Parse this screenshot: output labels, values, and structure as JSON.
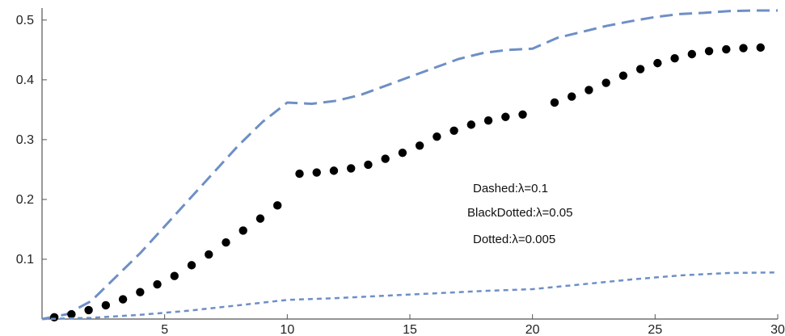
{
  "chart_data": {
    "type": "line",
    "title": "",
    "xlabel": "",
    "ylabel": "",
    "xlim": [
      0,
      30
    ],
    "ylim": [
      0,
      0.52
    ],
    "xticks": [
      5,
      10,
      15,
      20,
      25,
      30
    ],
    "yticks": [
      0.1,
      0.2,
      0.3,
      0.4,
      0.5
    ],
    "xtick_labels": [
      "5",
      "10",
      "15",
      "20",
      "25",
      "30"
    ],
    "ytick_labels": [
      "0.1",
      "0.2",
      "0.3",
      "0.4",
      "0.5"
    ],
    "grid": false,
    "legend_position": "center-right",
    "legend": [
      {
        "text": "Dashed:λ=0.1"
      },
      {
        "text": "BlackDotted:λ=0.05"
      },
      {
        "text": "Dotted:λ=0.005"
      }
    ],
    "series": [
      {
        "style": "dashed",
        "color": "#6e8fc6",
        "x": [
          0,
          1,
          2,
          3,
          4,
          5,
          6,
          7,
          8,
          9,
          10,
          11,
          12,
          13,
          14,
          15,
          16,
          17,
          18,
          19,
          20,
          21,
          22,
          23,
          24,
          25,
          26,
          27,
          28,
          29,
          30
        ],
        "y": [
          0.0,
          0.008,
          0.03,
          0.07,
          0.11,
          0.155,
          0.2,
          0.245,
          0.29,
          0.33,
          0.362,
          0.36,
          0.365,
          0.375,
          0.39,
          0.405,
          0.42,
          0.435,
          0.445,
          0.45,
          0.452,
          0.47,
          0.48,
          0.49,
          0.498,
          0.505,
          0.51,
          0.512,
          0.515,
          0.516,
          0.516
        ]
      },
      {
        "style": "big-dots",
        "color": "#000000",
        "x": [
          0.5,
          1.2,
          1.9,
          2.6,
          3.3,
          4.0,
          4.7,
          5.4,
          6.1,
          6.8,
          7.5,
          8.2,
          8.9,
          9.6,
          10.5,
          11.2,
          11.9,
          12.6,
          13.3,
          14.0,
          14.7,
          15.4,
          16.1,
          16.8,
          17.5,
          18.2,
          18.9,
          19.6,
          20.9,
          21.6,
          22.3,
          23.0,
          23.7,
          24.4,
          25.1,
          25.8,
          26.5,
          27.2,
          27.9,
          28.6,
          29.3
        ],
        "y": [
          0.003,
          0.008,
          0.015,
          0.023,
          0.033,
          0.045,
          0.058,
          0.072,
          0.09,
          0.108,
          0.128,
          0.148,
          0.168,
          0.19,
          0.243,
          0.245,
          0.248,
          0.252,
          0.258,
          0.268,
          0.278,
          0.29,
          0.305,
          0.315,
          0.325,
          0.332,
          0.338,
          0.342,
          0.362,
          0.372,
          0.383,
          0.395,
          0.407,
          0.418,
          0.428,
          0.436,
          0.443,
          0.448,
          0.451,
          0.453,
          0.454
        ]
      },
      {
        "style": "dotted",
        "color": "#6e8fc6",
        "x": [
          0,
          2,
          4,
          6,
          8,
          10,
          12,
          14,
          16,
          18,
          20,
          22,
          24,
          26,
          28,
          30
        ],
        "y": [
          0.0,
          0.002,
          0.007,
          0.014,
          0.023,
          0.032,
          0.035,
          0.039,
          0.043,
          0.047,
          0.05,
          0.058,
          0.066,
          0.073,
          0.077,
          0.078
        ]
      }
    ]
  }
}
